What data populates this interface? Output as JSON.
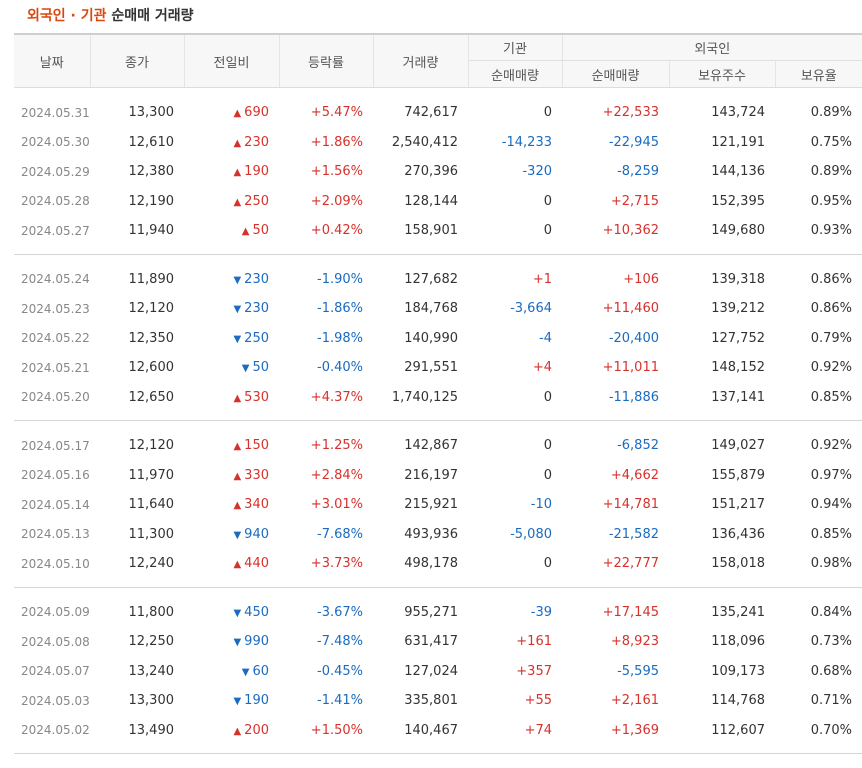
{
  "title": {
    "part1": "외국인 · 기관",
    "part2": "순매매 거래량"
  },
  "headers": {
    "date": "날짜",
    "close": "종가",
    "change": "전일비",
    "rate": "등락률",
    "volume": "거래량",
    "inst_group": "기관",
    "inst_net": "순매매량",
    "foreign_group": "외국인",
    "foreign_net": "순매매량",
    "holdings": "보유주수",
    "ratio": "보유율"
  },
  "colors": {
    "up": "#d6322c",
    "down": "#1a6bc1"
  },
  "groups": [
    {
      "rows": [
        {
          "date": "2024.05.31",
          "close": "13,300",
          "dir": "up",
          "change": "690",
          "rate": "+5.47%",
          "volume": "742,617",
          "inst": "0",
          "foreign": "+22,533",
          "holdings": "143,724",
          "ratio": "0.89%"
        },
        {
          "date": "2024.05.30",
          "close": "12,610",
          "dir": "up",
          "change": "230",
          "rate": "+1.86%",
          "volume": "2,540,412",
          "inst": "-14,233",
          "foreign": "-22,945",
          "holdings": "121,191",
          "ratio": "0.75%"
        },
        {
          "date": "2024.05.29",
          "close": "12,380",
          "dir": "up",
          "change": "190",
          "rate": "+1.56%",
          "volume": "270,396",
          "inst": "-320",
          "foreign": "-8,259",
          "holdings": "144,136",
          "ratio": "0.89%"
        },
        {
          "date": "2024.05.28",
          "close": "12,190",
          "dir": "up",
          "change": "250",
          "rate": "+2.09%",
          "volume": "128,144",
          "inst": "0",
          "foreign": "+2,715",
          "holdings": "152,395",
          "ratio": "0.95%"
        },
        {
          "date": "2024.05.27",
          "close": "11,940",
          "dir": "up",
          "change": "50",
          "rate": "+0.42%",
          "volume": "158,901",
          "inst": "0",
          "foreign": "+10,362",
          "holdings": "149,680",
          "ratio": "0.93%"
        }
      ]
    },
    {
      "rows": [
        {
          "date": "2024.05.24",
          "close": "11,890",
          "dir": "down",
          "change": "230",
          "rate": "-1.90%",
          "volume": "127,682",
          "inst": "+1",
          "foreign": "+106",
          "holdings": "139,318",
          "ratio": "0.86%"
        },
        {
          "date": "2024.05.23",
          "close": "12,120",
          "dir": "down",
          "change": "230",
          "rate": "-1.86%",
          "volume": "184,768",
          "inst": "-3,664",
          "foreign": "+11,460",
          "holdings": "139,212",
          "ratio": "0.86%"
        },
        {
          "date": "2024.05.22",
          "close": "12,350",
          "dir": "down",
          "change": "250",
          "rate": "-1.98%",
          "volume": "140,990",
          "inst": "-4",
          "foreign": "-20,400",
          "holdings": "127,752",
          "ratio": "0.79%"
        },
        {
          "date": "2024.05.21",
          "close": "12,600",
          "dir": "down",
          "change": "50",
          "rate": "-0.40%",
          "volume": "291,551",
          "inst": "+4",
          "foreign": "+11,011",
          "holdings": "148,152",
          "ratio": "0.92%"
        },
        {
          "date": "2024.05.20",
          "close": "12,650",
          "dir": "up",
          "change": "530",
          "rate": "+4.37%",
          "volume": "1,740,125",
          "inst": "0",
          "foreign": "-11,886",
          "holdings": "137,141",
          "ratio": "0.85%"
        }
      ]
    },
    {
      "rows": [
        {
          "date": "2024.05.17",
          "close": "12,120",
          "dir": "up",
          "change": "150",
          "rate": "+1.25%",
          "volume": "142,867",
          "inst": "0",
          "foreign": "-6,852",
          "holdings": "149,027",
          "ratio": "0.92%"
        },
        {
          "date": "2024.05.16",
          "close": "11,970",
          "dir": "up",
          "change": "330",
          "rate": "+2.84%",
          "volume": "216,197",
          "inst": "0",
          "foreign": "+4,662",
          "holdings": "155,879",
          "ratio": "0.97%"
        },
        {
          "date": "2024.05.14",
          "close": "11,640",
          "dir": "up",
          "change": "340",
          "rate": "+3.01%",
          "volume": "215,921",
          "inst": "-10",
          "foreign": "+14,781",
          "holdings": "151,217",
          "ratio": "0.94%"
        },
        {
          "date": "2024.05.13",
          "close": "11,300",
          "dir": "down",
          "change": "940",
          "rate": "-7.68%",
          "volume": "493,936",
          "inst": "-5,080",
          "foreign": "-21,582",
          "holdings": "136,436",
          "ratio": "0.85%"
        },
        {
          "date": "2024.05.10",
          "close": "12,240",
          "dir": "up",
          "change": "440",
          "rate": "+3.73%",
          "volume": "498,178",
          "inst": "0",
          "foreign": "+22,777",
          "holdings": "158,018",
          "ratio": "0.98%"
        }
      ]
    },
    {
      "rows": [
        {
          "date": "2024.05.09",
          "close": "11,800",
          "dir": "down",
          "change": "450",
          "rate": "-3.67%",
          "volume": "955,271",
          "inst": "-39",
          "foreign": "+17,145",
          "holdings": "135,241",
          "ratio": "0.84%"
        },
        {
          "date": "2024.05.08",
          "close": "12,250",
          "dir": "down",
          "change": "990",
          "rate": "-7.48%",
          "volume": "631,417",
          "inst": "+161",
          "foreign": "+8,923",
          "holdings": "118,096",
          "ratio": "0.73%"
        },
        {
          "date": "2024.05.07",
          "close": "13,240",
          "dir": "down",
          "change": "60",
          "rate": "-0.45%",
          "volume": "127,024",
          "inst": "+357",
          "foreign": "-5,595",
          "holdings": "109,173",
          "ratio": "0.68%"
        },
        {
          "date": "2024.05.03",
          "close": "13,300",
          "dir": "down",
          "change": "190",
          "rate": "-1.41%",
          "volume": "335,801",
          "inst": "+55",
          "foreign": "+2,161",
          "holdings": "114,768",
          "ratio": "0.71%"
        },
        {
          "date": "2024.05.02",
          "close": "13,490",
          "dir": "up",
          "change": "200",
          "rate": "+1.50%",
          "volume": "140,467",
          "inst": "+74",
          "foreign": "+1,369",
          "holdings": "112,607",
          "ratio": "0.70%"
        }
      ]
    }
  ]
}
